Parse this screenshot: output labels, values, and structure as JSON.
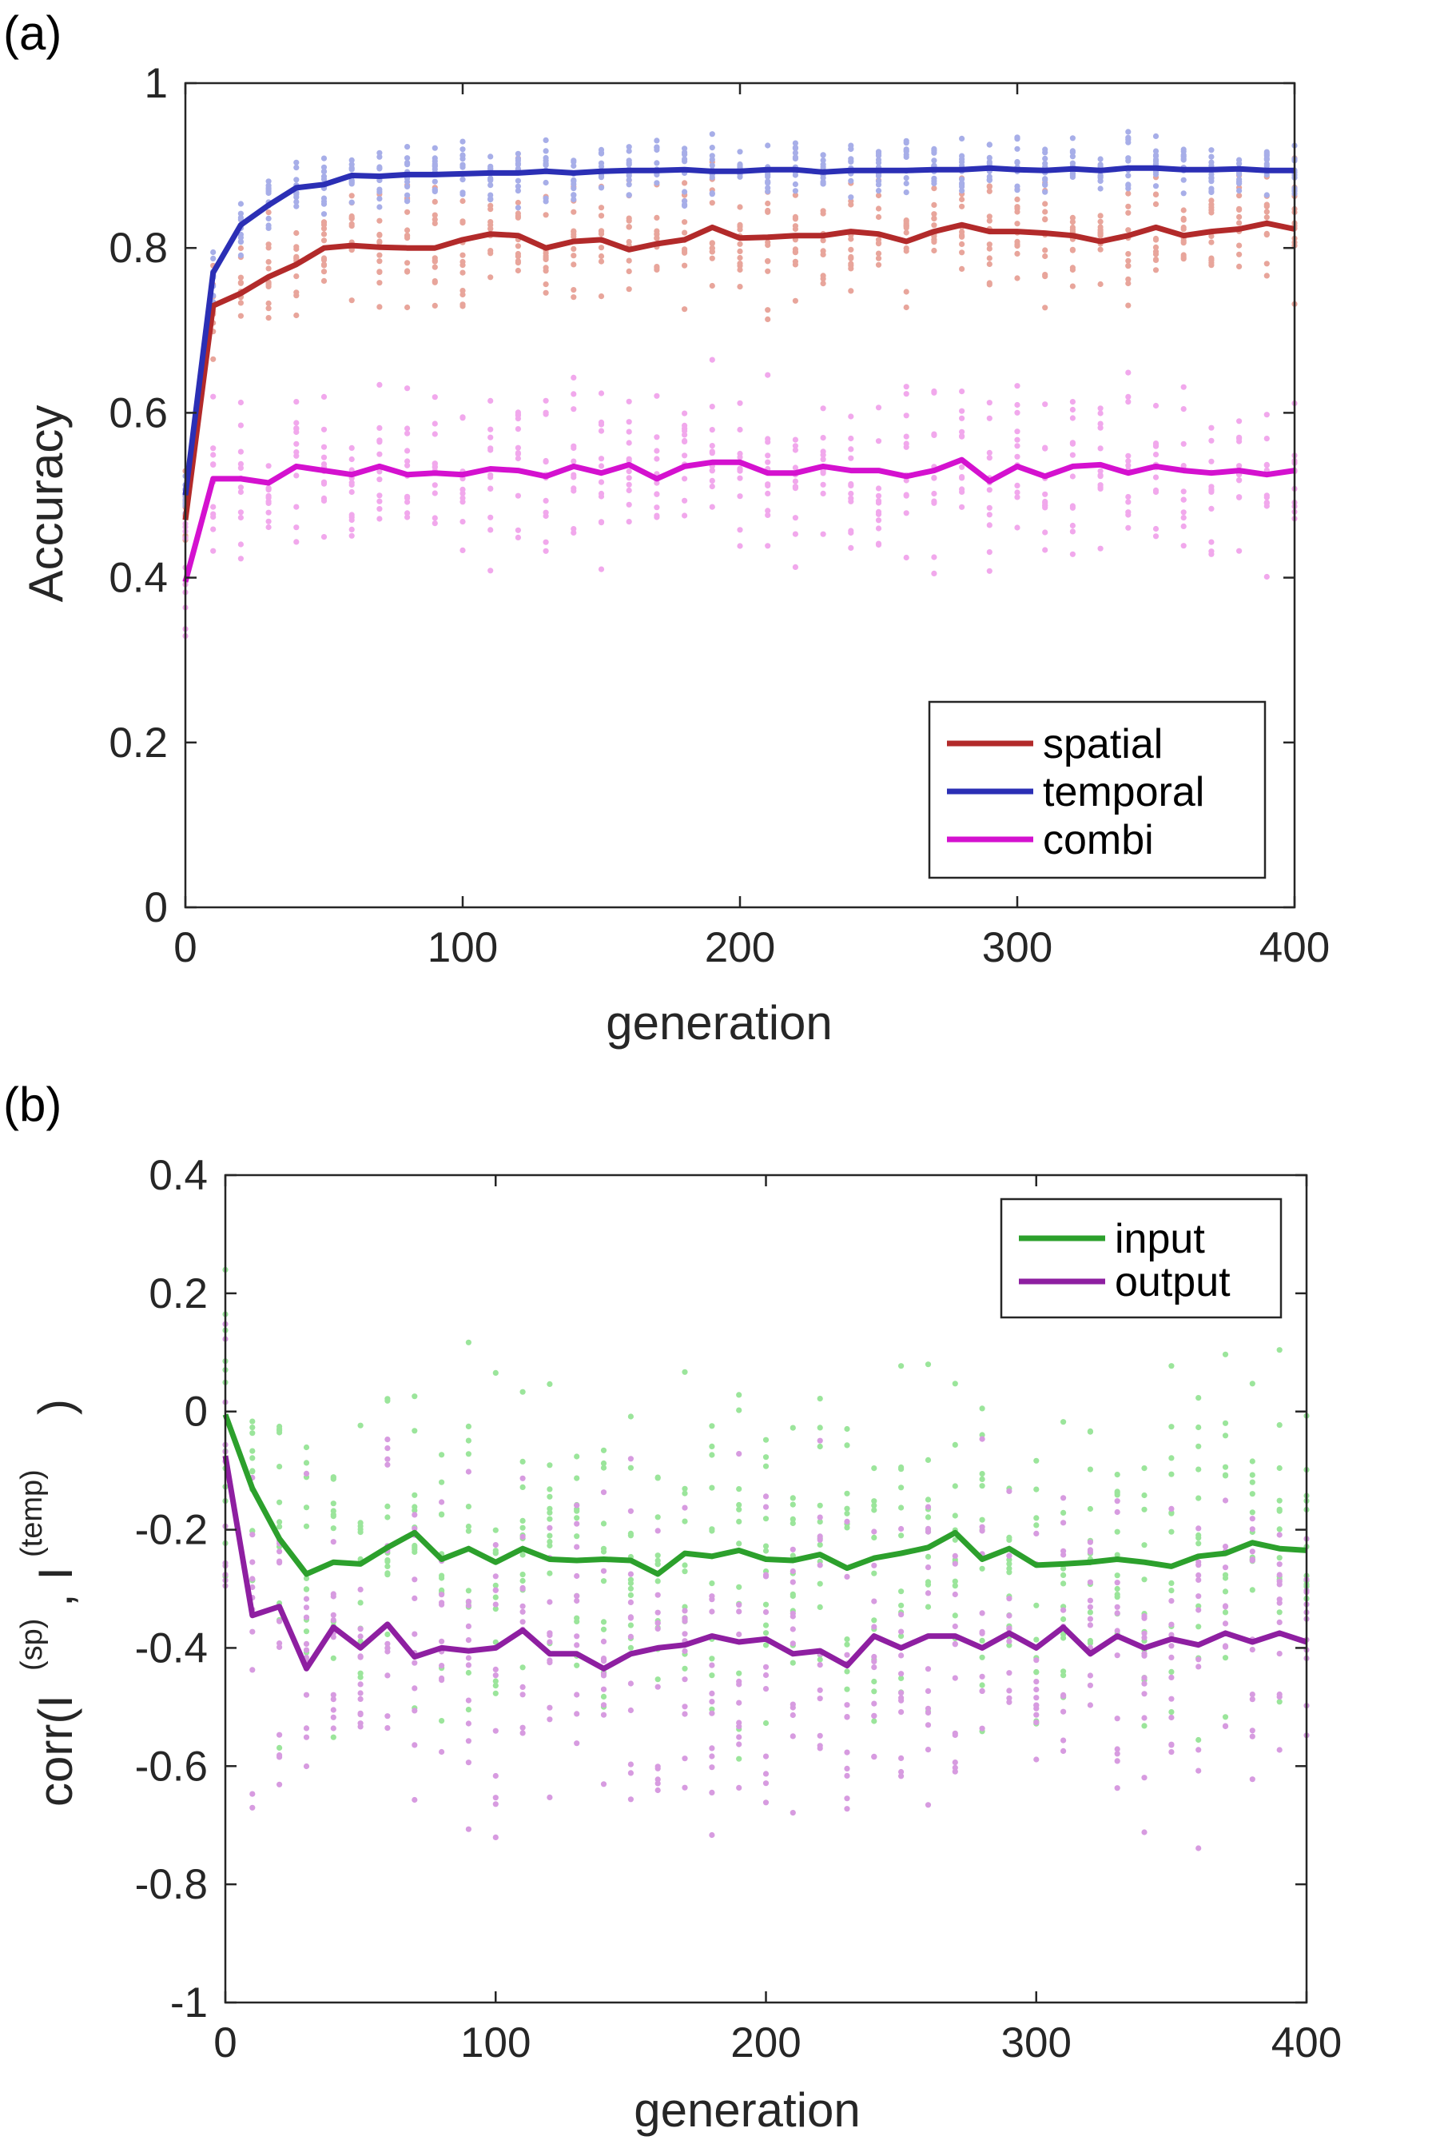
{
  "chart_data": [
    {
      "panel_label": "(a)",
      "type": "line",
      "xlabel": "generation",
      "ylabel": "Accuracy",
      "xlim": [
        0,
        400
      ],
      "ylim": [
        0,
        1
      ],
      "xticks": [
        "0",
        "100",
        "200",
        "300",
        "400"
      ],
      "yticks": [
        "0",
        "0.2",
        "0.4",
        "0.6",
        "0.8",
        "1"
      ],
      "legend_position": "bottom-right",
      "scatter_note": "individual points shown faintly at each sampled generation",
      "x": [
        0,
        10,
        20,
        30,
        40,
        50,
        60,
        70,
        80,
        90,
        100,
        110,
        120,
        130,
        140,
        150,
        160,
        170,
        180,
        190,
        200,
        210,
        220,
        230,
        240,
        250,
        260,
        270,
        280,
        290,
        300,
        310,
        320,
        330,
        340,
        350,
        360,
        370,
        380,
        390,
        400
      ],
      "series": [
        {
          "name": "spatial",
          "color": "#b22a2a",
          "scatter_color": "#e8a59b",
          "spread": 0.05,
          "values": [
            0.47,
            0.73,
            0.745,
            0.765,
            0.78,
            0.8,
            0.803,
            0.801,
            0.8,
            0.8,
            0.81,
            0.817,
            0.815,
            0.8,
            0.808,
            0.81,
            0.798,
            0.805,
            0.81,
            0.825,
            0.812,
            0.813,
            0.815,
            0.815,
            0.82,
            0.817,
            0.808,
            0.82,
            0.828,
            0.82,
            0.82,
            0.818,
            0.815,
            0.808,
            0.815,
            0.825,
            0.815,
            0.82,
            0.823,
            0.83,
            0.823
          ]
        },
        {
          "name": "temporal",
          "color": "#2b2fb5",
          "scatter_color": "#a7aee8",
          "spread": 0.025,
          "values": [
            0.5,
            0.77,
            0.828,
            0.852,
            0.873,
            0.877,
            0.888,
            0.887,
            0.889,
            0.889,
            0.89,
            0.891,
            0.891,
            0.893,
            0.891,
            0.893,
            0.894,
            0.894,
            0.895,
            0.893,
            0.893,
            0.895,
            0.895,
            0.892,
            0.894,
            0.894,
            0.894,
            0.895,
            0.895,
            0.897,
            0.895,
            0.894,
            0.896,
            0.894,
            0.897,
            0.897,
            0.895,
            0.895,
            0.896,
            0.894,
            0.894
          ]
        },
        {
          "name": "combi",
          "color": "#d411cf",
          "scatter_color": "#f1a8ec",
          "spread": 0.07,
          "values": [
            0.395,
            0.52,
            0.52,
            0.515,
            0.535,
            0.53,
            0.525,
            0.535,
            0.525,
            0.527,
            0.525,
            0.532,
            0.53,
            0.523,
            0.535,
            0.527,
            0.537,
            0.52,
            0.535,
            0.54,
            0.54,
            0.527,
            0.527,
            0.535,
            0.53,
            0.53,
            0.523,
            0.53,
            0.543,
            0.517,
            0.535,
            0.523,
            0.535,
            0.537,
            0.527,
            0.535,
            0.53,
            0.527,
            0.53,
            0.525,
            0.53
          ]
        }
      ]
    },
    {
      "panel_label": "(b)",
      "type": "line",
      "xlabel": "generation",
      "ylabel_parts": [
        "corr(I",
        "(sp)",
        ", I",
        "(temp)",
        ")"
      ],
      "xlim": [
        0,
        400
      ],
      "ylim": [
        -1,
        0.4
      ],
      "xticks": [
        "0",
        "100",
        "200",
        "300",
        "400"
      ],
      "yticks": [
        "-1",
        "-0.8",
        "-0.6",
        "-0.4",
        "-0.2",
        "0",
        "0.2",
        "0.4"
      ],
      "legend_position": "top-right",
      "scatter_note": "individual points shown faintly at each sampled generation",
      "x": [
        0,
        10,
        20,
        30,
        40,
        50,
        60,
        70,
        80,
        90,
        100,
        110,
        120,
        130,
        140,
        150,
        160,
        170,
        180,
        190,
        200,
        210,
        220,
        230,
        240,
        250,
        260,
        270,
        280,
        290,
        300,
        310,
        320,
        330,
        340,
        350,
        360,
        370,
        380,
        390,
        400
      ],
      "series": [
        {
          "name": "input",
          "color": "#2ca02c",
          "scatter_color": "#9be59b",
          "spread": 0.2,
          "values": [
            -0.005,
            -0.13,
            -0.215,
            -0.275,
            -0.255,
            -0.258,
            -0.23,
            -0.205,
            -0.25,
            -0.232,
            -0.255,
            -0.232,
            -0.25,
            -0.252,
            -0.25,
            -0.252,
            -0.275,
            -0.24,
            -0.245,
            -0.235,
            -0.25,
            -0.252,
            -0.242,
            -0.265,
            -0.248,
            -0.24,
            -0.23,
            -0.205,
            -0.25,
            -0.232,
            -0.26,
            -0.258,
            -0.255,
            -0.25,
            -0.255,
            -0.262,
            -0.245,
            -0.24,
            -0.222,
            -0.232,
            -0.235
          ]
        },
        {
          "name": "output",
          "color": "#8e1fa1",
          "scatter_color": "#d79be0",
          "spread": 0.2,
          "values": [
            -0.075,
            -0.345,
            -0.33,
            -0.435,
            -0.365,
            -0.4,
            -0.36,
            -0.415,
            -0.4,
            -0.405,
            -0.4,
            -0.37,
            -0.41,
            -0.41,
            -0.435,
            -0.41,
            -0.4,
            -0.395,
            -0.38,
            -0.39,
            -0.385,
            -0.41,
            -0.405,
            -0.43,
            -0.38,
            -0.4,
            -0.38,
            -0.38,
            -0.4,
            -0.375,
            -0.4,
            -0.365,
            -0.41,
            -0.38,
            -0.4,
            -0.385,
            -0.395,
            -0.375,
            -0.39,
            -0.375,
            -0.39
          ]
        }
      ]
    }
  ]
}
